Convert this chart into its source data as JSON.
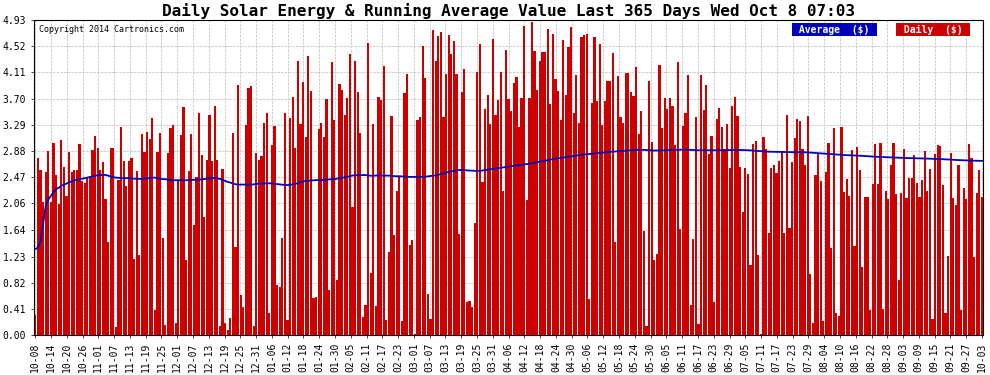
{
  "title": "Daily Solar Energy & Running Average Value Last 365 Days Wed Oct 8 07:03",
  "copyright": "Copyright 2014 Cartronics.com",
  "legend_labels": [
    "Average  ($)",
    "Daily  ($)"
  ],
  "legend_colors": [
    "#0000bb",
    "#cc0000"
  ],
  "bar_color": "#cc0000",
  "avg_color": "#0000bb",
  "bg_color": "#ffffff",
  "plot_bg": "#ffffff",
  "yticks": [
    0.0,
    0.41,
    0.82,
    1.23,
    1.64,
    2.06,
    2.47,
    2.88,
    3.29,
    3.7,
    4.11,
    4.52,
    4.93
  ],
  "ylim": [
    0,
    4.93
  ],
  "grid_color": "#bbbbbb",
  "title_fontsize": 11.5,
  "tick_fontsize": 7,
  "x_labels": [
    "10-08",
    "10-14",
    "10-20",
    "10-26",
    "11-01",
    "11-07",
    "11-13",
    "11-19",
    "11-25",
    "12-01",
    "12-07",
    "12-13",
    "12-19",
    "12-25",
    "12-31",
    "01-06",
    "01-12",
    "01-18",
    "01-24",
    "01-30",
    "02-05",
    "02-11",
    "02-17",
    "02-23",
    "03-01",
    "03-07",
    "03-13",
    "03-19",
    "03-25",
    "03-31",
    "04-06",
    "04-12",
    "04-18",
    "04-24",
    "04-30",
    "05-06",
    "05-12",
    "05-18",
    "05-24",
    "05-30",
    "06-05",
    "06-11",
    "06-17",
    "06-23",
    "06-29",
    "07-05",
    "07-11",
    "07-17",
    "07-23",
    "07-29",
    "08-04",
    "08-10",
    "08-16",
    "08-22",
    "08-28",
    "09-03",
    "09-09",
    "09-15",
    "09-21",
    "09-27",
    "10-03"
  ]
}
